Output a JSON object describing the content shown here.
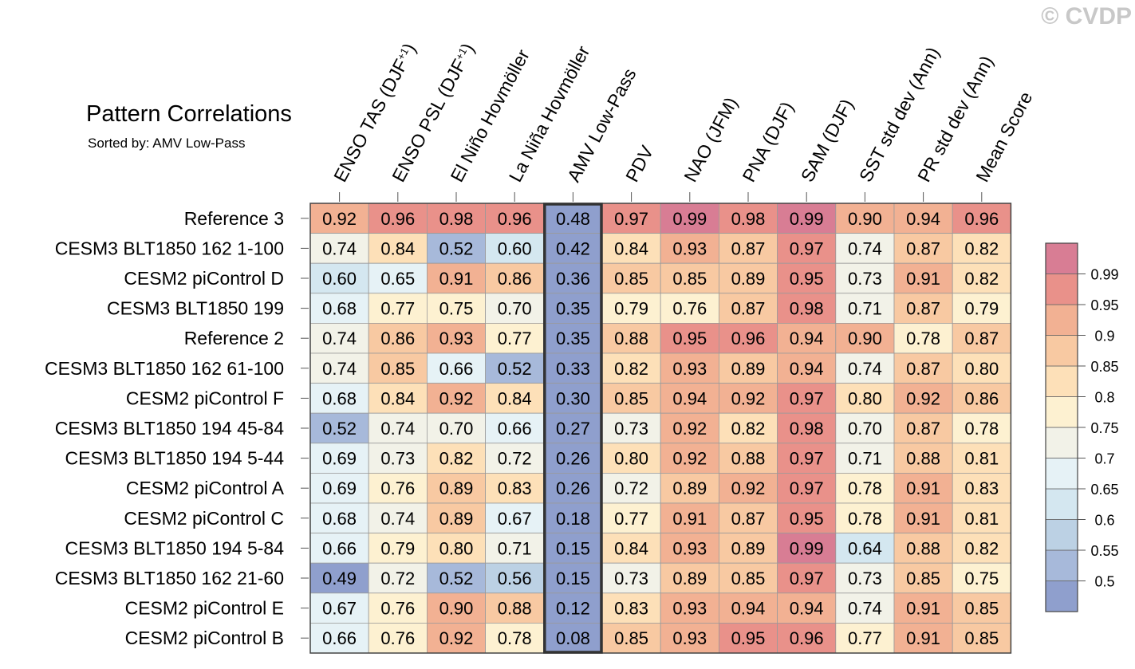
{
  "chart_data": {
    "type": "heatmap",
    "title": "Pattern Correlations",
    "subtitle": "Sorted by: AMV Low-Pass",
    "watermark": "© CVDP",
    "columns": [
      "ENSO TAS (DJF+1)",
      "ENSO PSL (DJF+1)",
      "El Niño Hovmöller",
      "La Niña Hovmöller",
      "AMV Low-Pass",
      "PDV",
      "NAO (JFM)",
      "PNA (DJF)",
      "SAM (DJF)",
      "SST std dev (Ann)",
      "PR std dev (Ann)",
      "Mean Score"
    ],
    "rows": [
      "Reference 3",
      "CESM3 BLT1850 162 1-100",
      "CESM2 piControl D",
      "CESM3 BLT1850 199",
      "Reference 2",
      "CESM3 BLT1850 162 61-100",
      "CESM2 piControl F",
      "CESM3 BLT1850 194 45-84",
      "CESM3 BLT1850 194 5-44",
      "CESM2 piControl A",
      "CESM2 piControl C",
      "CESM3 BLT1850 194 5-84",
      "CESM3 BLT1850 162 21-60",
      "CESM2 piControl E",
      "CESM2 piControl B"
    ],
    "values": [
      [
        "0.92",
        "0.96",
        "0.98",
        "0.96",
        "0.48",
        "0.97",
        "0.99",
        "0.98",
        "0.99",
        "0.90",
        "0.94",
        "0.96"
      ],
      [
        "0.74",
        "0.84",
        "0.52",
        "0.60",
        "0.42",
        "0.84",
        "0.93",
        "0.87",
        "0.97",
        "0.74",
        "0.87",
        "0.82"
      ],
      [
        "0.60",
        "0.65",
        "0.91",
        "0.86",
        "0.36",
        "0.85",
        "0.85",
        "0.89",
        "0.95",
        "0.73",
        "0.91",
        "0.82"
      ],
      [
        "0.68",
        "0.77",
        "0.75",
        "0.70",
        "0.35",
        "0.79",
        "0.76",
        "0.87",
        "0.98",
        "0.71",
        "0.87",
        "0.79"
      ],
      [
        "0.74",
        "0.86",
        "0.93",
        "0.77",
        "0.35",
        "0.88",
        "0.95",
        "0.96",
        "0.94",
        "0.90",
        "0.78",
        "0.87"
      ],
      [
        "0.74",
        "0.85",
        "0.66",
        "0.52",
        "0.33",
        "0.82",
        "0.93",
        "0.89",
        "0.94",
        "0.74",
        "0.87",
        "0.80"
      ],
      [
        "0.68",
        "0.84",
        "0.92",
        "0.84",
        "0.30",
        "0.85",
        "0.94",
        "0.92",
        "0.97",
        "0.80",
        "0.92",
        "0.86"
      ],
      [
        "0.52",
        "0.74",
        "0.70",
        "0.66",
        "0.27",
        "0.73",
        "0.92",
        "0.82",
        "0.98",
        "0.70",
        "0.87",
        "0.78"
      ],
      [
        "0.69",
        "0.73",
        "0.82",
        "0.72",
        "0.26",
        "0.80",
        "0.92",
        "0.88",
        "0.97",
        "0.71",
        "0.88",
        "0.81"
      ],
      [
        "0.69",
        "0.76",
        "0.89",
        "0.83",
        "0.26",
        "0.72",
        "0.89",
        "0.92",
        "0.97",
        "0.78",
        "0.91",
        "0.83"
      ],
      [
        "0.68",
        "0.74",
        "0.89",
        "0.67",
        "0.18",
        "0.77",
        "0.91",
        "0.87",
        "0.95",
        "0.78",
        "0.91",
        "0.81"
      ],
      [
        "0.66",
        "0.79",
        "0.80",
        "0.71",
        "0.15",
        "0.84",
        "0.93",
        "0.89",
        "0.99",
        "0.64",
        "0.88",
        "0.82"
      ],
      [
        "0.49",
        "0.72",
        "0.52",
        "0.56",
        "0.15",
        "0.73",
        "0.89",
        "0.85",
        "0.97",
        "0.73",
        "0.85",
        "0.75"
      ],
      [
        "0.67",
        "0.76",
        "0.90",
        "0.88",
        "0.12",
        "0.83",
        "0.93",
        "0.94",
        "0.94",
        "0.74",
        "0.91",
        "0.85"
      ],
      [
        "0.66",
        "0.76",
        "0.92",
        "0.78",
        "0.08",
        "0.85",
        "0.93",
        "0.95",
        "0.96",
        "0.77",
        "0.91",
        "0.85"
      ]
    ],
    "sorted_column": "AMV Low-Pass",
    "colorbar": {
      "levels": [
        "0.5",
        "0.55",
        "0.6",
        "0.65",
        "0.7",
        "0.75",
        "0.8",
        "0.85",
        "0.9",
        "0.95",
        "0.99"
      ],
      "colors": [
        "#8f9fcd",
        "#a7b9da",
        "#bcd1e4",
        "#d4e7f0",
        "#e6f2f6",
        "#f2f2e8",
        "#fdf1d1",
        "#fde0b8",
        "#f8c9a2",
        "#f2b193",
        "#e9918a",
        "#d87d94"
      ]
    }
  }
}
